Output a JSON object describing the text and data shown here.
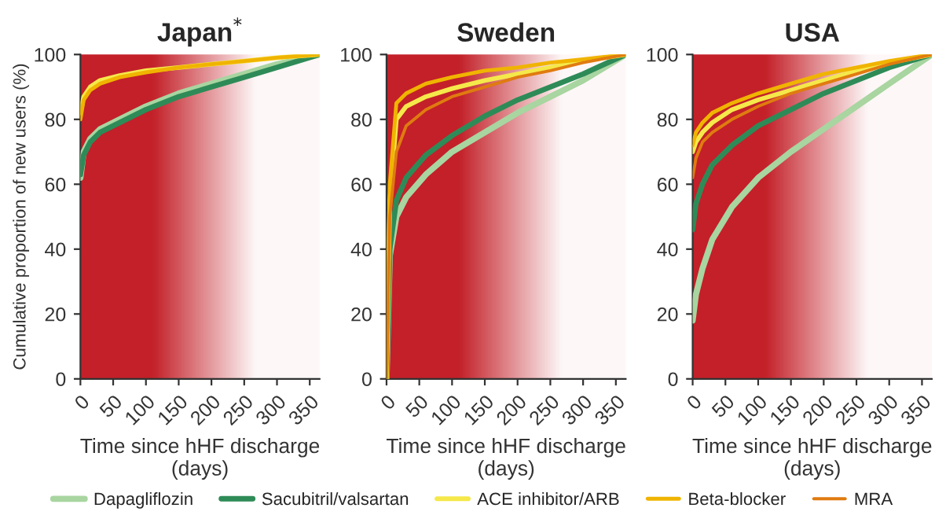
{
  "chart_data": [
    {
      "type": "line",
      "title": "Japan$^{*}$",
      "xlabel": "Time since hHF discharge\n(days)",
      "ylabel": "Cumulative proportion of new users (%)",
      "xlim": [
        0,
        365
      ],
      "ylim": [
        0,
        100
      ],
      "xticks": [
        0,
        50,
        100,
        150,
        200,
        250,
        300,
        350
      ],
      "yticks": [
        0,
        20,
        40,
        60,
        80,
        100
      ],
      "grid": false,
      "legend": "bottom",
      "x": [
        0,
        5,
        15,
        30,
        60,
        100,
        150,
        200,
        250,
        300,
        365
      ],
      "series": [
        {
          "name": "Dapagliflozin",
          "color": "#a8d5a0",
          "values": [
            62,
            70,
            74,
            77,
            80,
            84,
            88,
            91,
            94,
            97,
            100
          ]
        },
        {
          "name": "Sacubitril/valsartan",
          "color": "#2e8b57",
          "values": [
            63,
            69,
            73,
            76,
            79,
            83,
            87,
            90,
            93,
            96,
            100
          ]
        },
        {
          "name": "ACE inhibitor/ARB",
          "color": "#f5e84a",
          "values": [
            82,
            87,
            90,
            92,
            93.5,
            95,
            96,
            97,
            98,
            99,
            100
          ]
        },
        {
          "name": "Beta-blocker",
          "color": "#f0b400",
          "values": [
            80,
            86,
            89,
            91,
            93,
            94.5,
            96,
            97,
            98,
            99,
            100
          ]
        }
      ]
    },
    {
      "type": "line",
      "title": "Sweden",
      "xlabel": "Time since hHF discharge\n(days)",
      "xlim": [
        0,
        365
      ],
      "ylim": [
        0,
        100
      ],
      "xticks": [
        0,
        50,
        100,
        150,
        200,
        250,
        300,
        350
      ],
      "yticks": [
        0,
        20,
        40,
        60,
        80,
        100
      ],
      "grid": false,
      "x": [
        0,
        5,
        15,
        30,
        60,
        100,
        150,
        200,
        250,
        300,
        365
      ],
      "series": [
        {
          "name": "Dapagliflozin",
          "color": "#a8d5a0",
          "values": [
            0,
            38,
            50,
            56,
            63,
            70,
            76,
            82,
            87,
            92,
            100
          ]
        },
        {
          "name": "Sacubitril/valsartan",
          "color": "#2e8b57",
          "values": [
            0,
            40,
            55,
            62,
            69,
            75,
            81,
            86,
            90,
            94,
            100
          ]
        },
        {
          "name": "ACE inhibitor/ARB",
          "color": "#f5e84a",
          "values": [
            0,
            55,
            80,
            84,
            87,
            89.5,
            92,
            94,
            96,
            98,
            100
          ]
        },
        {
          "name": "Beta-blocker",
          "color": "#f0b400",
          "values": [
            0,
            60,
            85,
            88,
            91,
            93,
            95,
            96,
            97.5,
            98.5,
            100
          ]
        },
        {
          "name": "MRA",
          "color": "#e07b10",
          "values": [
            0,
            50,
            70,
            78,
            83,
            87,
            90,
            93,
            95,
            97.5,
            100
          ]
        }
      ]
    },
    {
      "type": "line",
      "title": "USA",
      "xlabel": "Time since hHF discharge\n(days)",
      "xlim": [
        0,
        365
      ],
      "ylim": [
        0,
        100
      ],
      "xticks": [
        0,
        50,
        100,
        150,
        200,
        250,
        300,
        350
      ],
      "yticks": [
        0,
        20,
        40,
        60,
        80,
        100
      ],
      "grid": false,
      "x": [
        0,
        5,
        15,
        30,
        60,
        100,
        150,
        200,
        250,
        300,
        365
      ],
      "series": [
        {
          "name": "Dapagliflozin",
          "color": "#a8d5a0",
          "values": [
            18,
            26,
            34,
            43,
            53,
            62,
            70,
            77,
            84,
            91,
            100
          ]
        },
        {
          "name": "Sacubitril/valsartan",
          "color": "#2e8b57",
          "values": [
            46,
            54,
            60,
            66,
            72,
            78,
            83,
            88,
            92,
            96,
            100
          ]
        },
        {
          "name": "ACE inhibitor/ARB",
          "color": "#f5e84a",
          "values": [
            70,
            73,
            76,
            79,
            83,
            86,
            89,
            92,
            95,
            97.5,
            100
          ]
        },
        {
          "name": "Beta-blocker",
          "color": "#f0b400",
          "values": [
            72,
            76,
            79,
            82,
            85,
            88,
            91,
            94,
            96,
            98,
            100
          ]
        },
        {
          "name": "MRA",
          "color": "#e07b10",
          "values": [
            62,
            68,
            73,
            76,
            80,
            84,
            88,
            91,
            94,
            97,
            100
          ]
        }
      ]
    }
  ]
}
